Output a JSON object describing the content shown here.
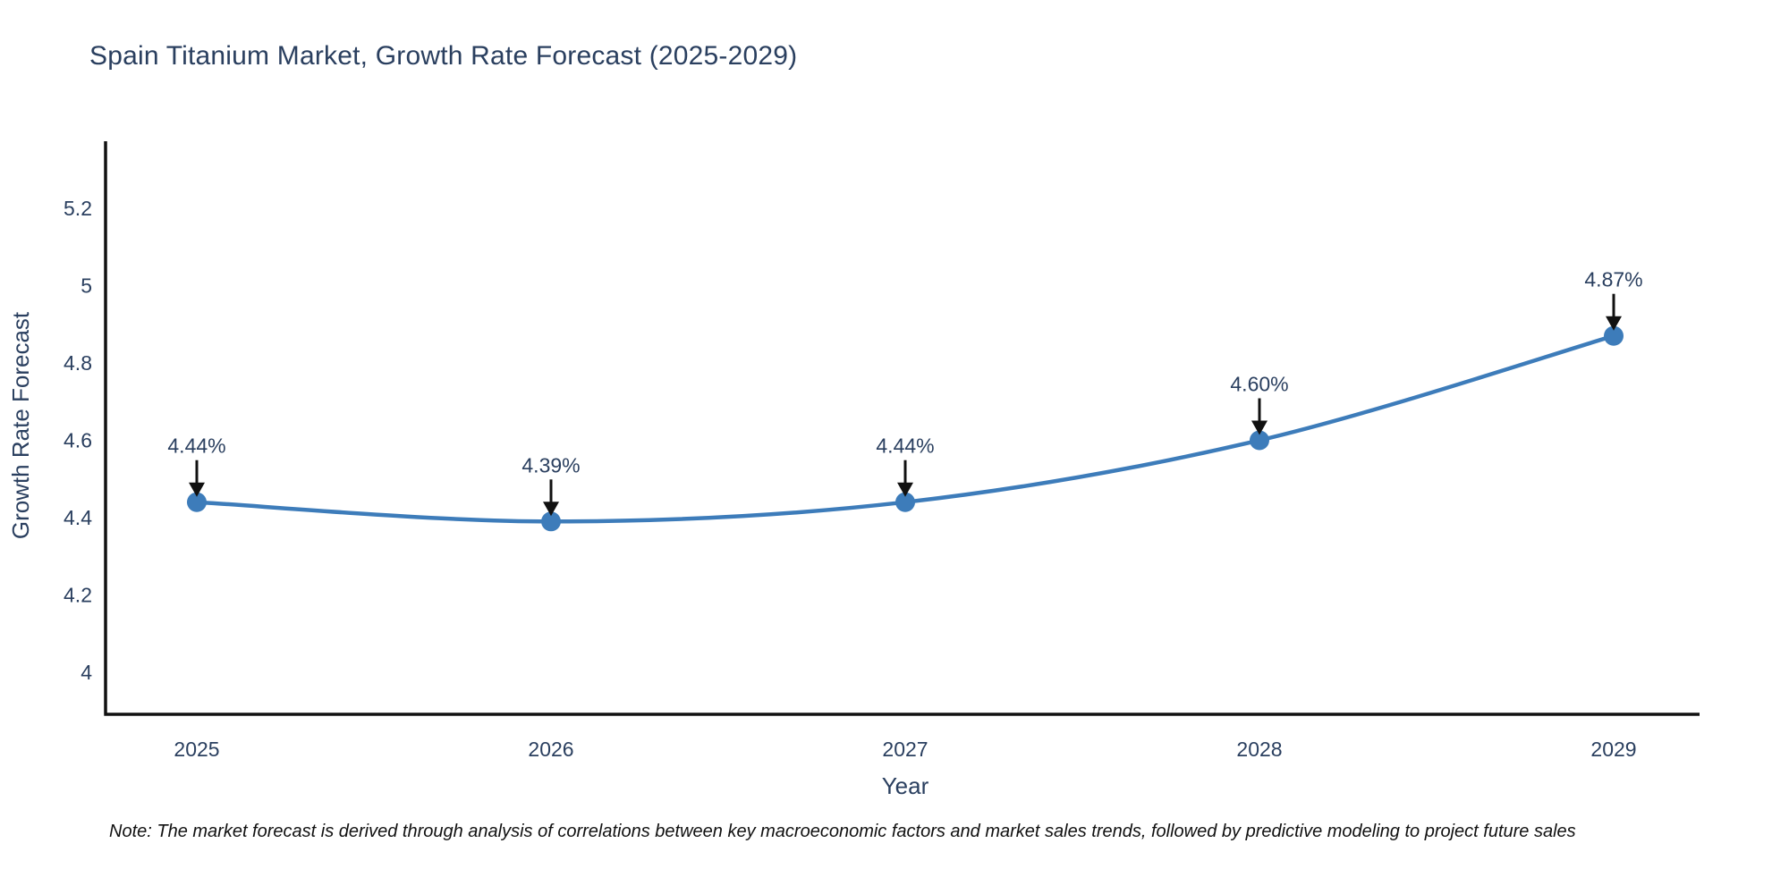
{
  "title": "Spain Titanium Market, Growth Rate Forecast (2025-2029)",
  "note": "Note: The market forecast is derived through analysis of correlations between key macroeconomic factors and market sales trends, followed by predictive modeling to project future sales",
  "chart_data": {
    "type": "line",
    "curve": "spline",
    "title": "Spain Titanium Market, Growth Rate Forecast (2025-2029)",
    "xlabel": "Year",
    "ylabel": "Growth Rate Forecast",
    "x": [
      "2025",
      "2026",
      "2027",
      "2028",
      "2029"
    ],
    "series": [
      {
        "name": "Growth Rate Forecast",
        "values": [
          4.44,
          4.39,
          4.44,
          4.6,
          4.87
        ]
      }
    ],
    "point_labels": [
      "4.44%",
      "4.39%",
      "4.44%",
      "4.60%",
      "4.87%"
    ],
    "yticks": [
      4,
      4.2,
      4.4,
      4.6,
      4.8,
      5,
      5.2
    ],
    "ylim": [
      3.88,
      5.4
    ],
    "grid": false,
    "legend": "none",
    "colors": {
      "line": "#3d7cba",
      "marker": "#3d7cba",
      "axis": "#111111",
      "text": "#2a3f5f",
      "annotation_arrow": "#111111",
      "note_text": "#111111",
      "background": "#ffffff"
    }
  }
}
